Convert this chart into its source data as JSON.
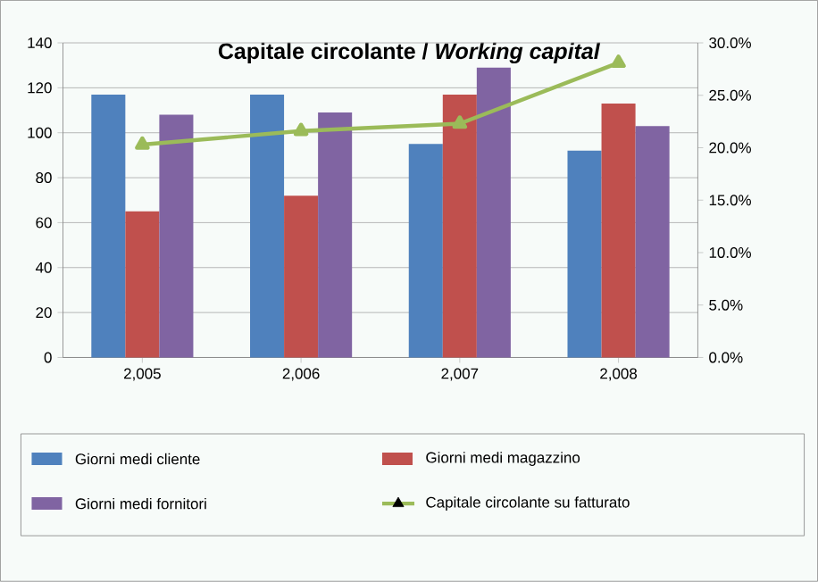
{
  "chart_data": {
    "type": "bar",
    "title": "Capitale circolante / *Working capital*",
    "categories": [
      "2,005",
      "2,006",
      "2,007",
      "2,008"
    ],
    "series": [
      {
        "name": "Giorni medi cliente",
        "color": "#4f81bd",
        "values": [
          117,
          117,
          95,
          92
        ]
      },
      {
        "name": "Giorni medi magazzino",
        "color": "#c0504d",
        "values": [
          65,
          72,
          117,
          113
        ]
      },
      {
        "name": "Giorni medi fornitori",
        "color": "#8064a2",
        "values": [
          108,
          109,
          129,
          103
        ]
      },
      {
        "name": "Capitale circolante su fatturato",
        "color": "#9bbb59",
        "type": "line",
        "axis": "y2",
        "marker": "triangle",
        "values": [
          20.3,
          21.6,
          22.3,
          28.1
        ]
      }
    ],
    "ylim": [
      0,
      140
    ],
    "yticks": [
      0,
      20,
      40,
      60,
      80,
      100,
      120,
      140
    ],
    "y2lim": [
      0,
      30
    ],
    "y2ticks": [
      {
        "value": 0,
        "label": "0.0%"
      },
      {
        "value": 5,
        "label": "5.0%"
      },
      {
        "value": 10,
        "label": "10.0%"
      },
      {
        "value": 15,
        "label": "15.0%"
      },
      {
        "value": 20,
        "label": "20.0%"
      },
      {
        "value": 25,
        "label": "25.0%"
      },
      {
        "value": 30,
        "label": "30.0%"
      }
    ],
    "grid": "y",
    "legend": "bottom"
  }
}
